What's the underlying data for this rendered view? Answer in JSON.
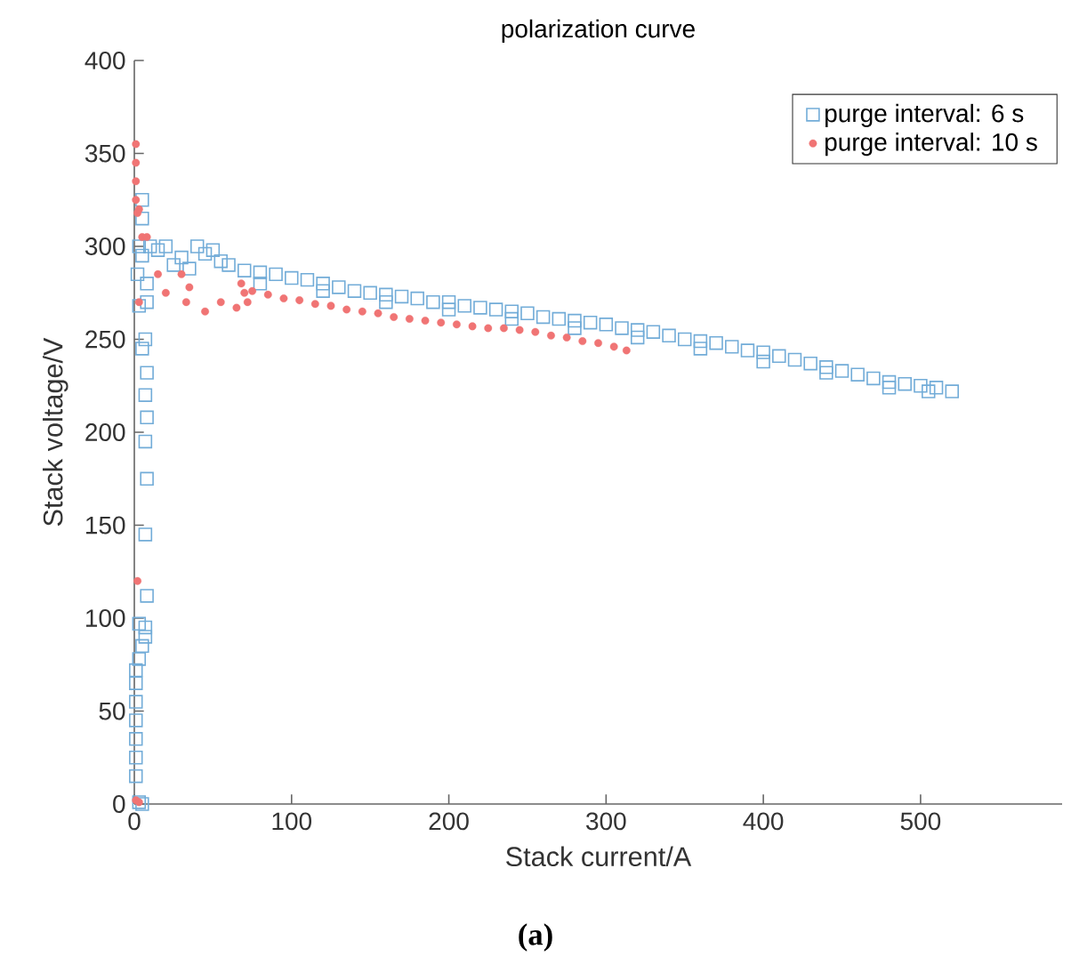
{
  "chart_data": {
    "type": "scatter",
    "title": "polarization curve",
    "xlabel": "Stack current/A",
    "ylabel": "Stack voltage/V",
    "xlim": [
      0,
      590
    ],
    "ylim": [
      0,
      400
    ],
    "xticks": [
      0,
      100,
      200,
      300,
      400,
      500
    ],
    "yticks": [
      0,
      50,
      100,
      150,
      200,
      250,
      300,
      350,
      400
    ],
    "grid": false,
    "legend": "top right",
    "annotations": [
      "(a)"
    ],
    "series": [
      {
        "name": "purge interval: 6 s",
        "color": "#72acd8",
        "marker": "square",
        "x": [
          3,
          5,
          1,
          1,
          1,
          1,
          1,
          1,
          1,
          3,
          5,
          7,
          7,
          3,
          8,
          7,
          8,
          7,
          8,
          7,
          8,
          5,
          7,
          3,
          8,
          3,
          5,
          8,
          2,
          5,
          5,
          10,
          15,
          20,
          25,
          30,
          35,
          40,
          45,
          50,
          55,
          60,
          70,
          80,
          90,
          100,
          110,
          120,
          130,
          140,
          150,
          160,
          170,
          180,
          190,
          200,
          210,
          220,
          230,
          240,
          250,
          260,
          270,
          280,
          290,
          300,
          310,
          320,
          330,
          340,
          350,
          360,
          370,
          380,
          390,
          400,
          410,
          420,
          430,
          440,
          450,
          460,
          470,
          480,
          490,
          500,
          510,
          520,
          80,
          120,
          160,
          200,
          240,
          280,
          320,
          360,
          400,
          440,
          480,
          505
        ],
        "values": [
          1,
          0,
          15,
          25,
          35,
          45,
          55,
          65,
          72,
          78,
          85,
          90,
          95,
          97,
          112,
          145,
          175,
          195,
          208,
          220,
          232,
          245,
          250,
          268,
          270,
          300,
          295,
          280,
          285,
          325,
          315,
          300,
          298,
          300,
          290,
          294,
          288,
          300,
          296,
          298,
          292,
          290,
          287,
          286,
          285,
          283,
          282,
          280,
          278,
          276,
          275,
          274,
          273,
          272,
          270,
          270,
          268,
          267,
          266,
          265,
          264,
          262,
          261,
          260,
          259,
          258,
          256,
          255,
          254,
          252,
          250,
          249,
          248,
          246,
          244,
          243,
          241,
          239,
          237,
          235,
          233,
          231,
          229,
          227,
          226,
          225,
          224,
          222,
          280,
          276,
          270,
          266,
          261,
          256,
          251,
          245,
          238,
          232,
          224,
          222
        ]
      },
      {
        "name": "purge interval: 10 s",
        "color": "#f07474",
        "marker": "circle",
        "x": [
          1,
          3,
          2,
          1,
          1,
          1,
          1,
          2,
          3,
          5,
          8,
          3,
          15,
          20,
          30,
          35,
          33,
          45,
          55,
          65,
          68,
          70,
          72,
          75,
          85,
          95,
          105,
          115,
          125,
          135,
          145,
          155,
          165,
          175,
          185,
          195,
          205,
          215,
          225,
          235,
          245,
          255,
          265,
          275,
          285,
          295,
          305,
          313
        ],
        "values": [
          2,
          1,
          120,
          355,
          345,
          335,
          325,
          318,
          320,
          305,
          305,
          270,
          285,
          275,
          285,
          278,
          270,
          265,
          270,
          267,
          280,
          275,
          270,
          276,
          274,
          272,
          271,
          269,
          268,
          266,
          265,
          264,
          262,
          261,
          260,
          259,
          258,
          257,
          256,
          256,
          255,
          254,
          252,
          251,
          249,
          248,
          246,
          244
        ]
      }
    ]
  }
}
